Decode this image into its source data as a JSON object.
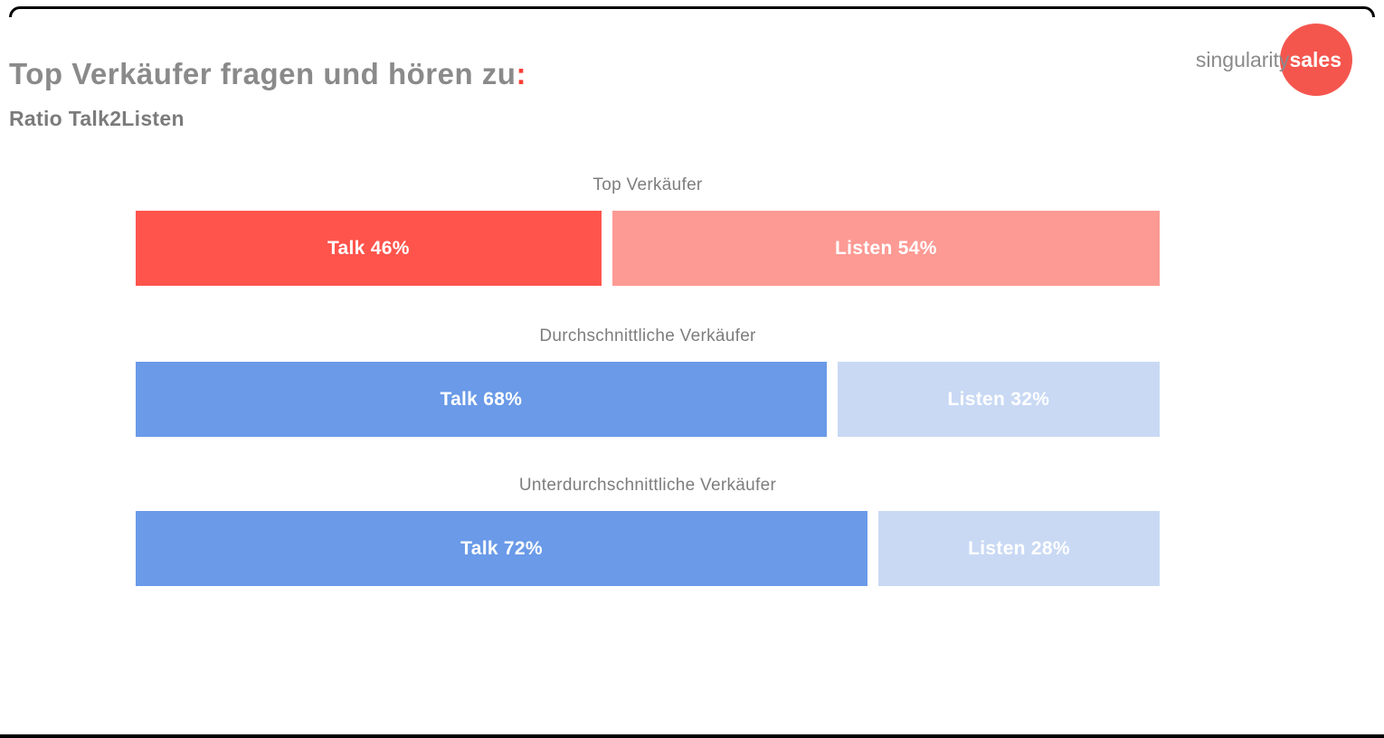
{
  "header": {
    "title": "Top Verkäufer fragen und hören zu",
    "title_colon": ":",
    "subtitle": "Ratio Talk2Listen"
  },
  "logo": {
    "part1": "singularity",
    "part2": "sales",
    "circle_color": "#f4564e"
  },
  "colors": {
    "title_gray": "#8a8a8a",
    "label_gray": "#7d7d7d",
    "accent_red": "#f93e36",
    "talk_red": "#ff544c",
    "listen_pink": "#fd9a94",
    "talk_blue": "#6a9ae8",
    "listen_light_blue": "#c9d9f4"
  },
  "chart_data": {
    "type": "bar",
    "orientation": "horizontal",
    "title": "Top Verkäufer fragen und hören zu: Ratio Talk2Listen",
    "unit": "%",
    "xlim": [
      0,
      100
    ],
    "grid": false,
    "legend": "none",
    "categories": [
      "Top Verkäufer",
      "Durchschnittliche Verkäufer",
      "Unterdurchschnittliche Verkäufer"
    ],
    "series": [
      {
        "name": "Talk",
        "values": [
          46,
          68,
          72
        ]
      },
      {
        "name": "Listen",
        "values": [
          54,
          32,
          28
        ]
      }
    ],
    "groups": [
      {
        "label": "Top Verkäufer",
        "talk": {
          "text": "Talk 46%",
          "value": 46,
          "color": "#ff544c"
        },
        "listen": {
          "text": "Listen 54%",
          "value": 54,
          "color": "#fd9a94"
        }
      },
      {
        "label": "Durchschnittliche Verkäufer",
        "talk": {
          "text": "Talk 68%",
          "value": 68,
          "color": "#6a9ae8"
        },
        "listen": {
          "text": "Listen 32%",
          "value": 32,
          "color": "#c9d9f4"
        }
      },
      {
        "label": "Unterdurchschnittliche Verkäufer",
        "talk": {
          "text": "Talk 72%",
          "value": 72,
          "color": "#6a9ae8"
        },
        "listen": {
          "text": "Listen 28%",
          "value": 28,
          "color": "#c9d9f4"
        }
      }
    ]
  }
}
